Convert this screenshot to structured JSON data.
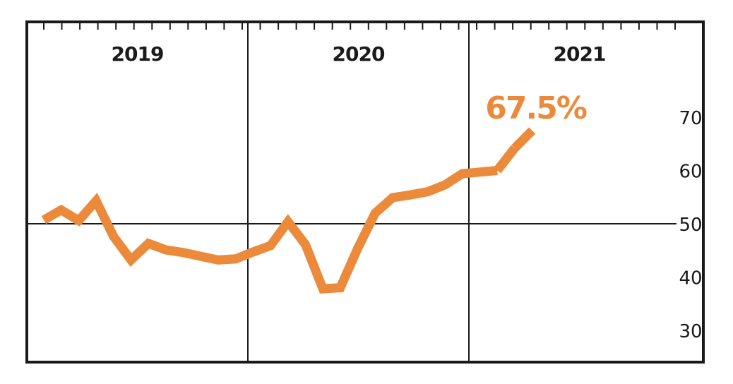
{
  "chart_data": {
    "type": "line",
    "periods": [
      "2019",
      "2020",
      "2021"
    ],
    "months_per_period": 12,
    "ylim": [
      27,
      78
    ],
    "yticks": [
      30,
      40,
      50,
      60,
      70
    ],
    "reference_line": 50,
    "grid": false,
    "series": [
      {
        "color": "#ec8a3b",
        "x": [
          "2019-01",
          "2019-02",
          "2019-03",
          "2019-04",
          "2019-05",
          "2019-06",
          "2019-07",
          "2019-08",
          "2019-09",
          "2019-10",
          "2019-11",
          "2019-12",
          "2020-01",
          "2020-02",
          "2020-03",
          "2020-04",
          "2020-05",
          "2020-06",
          "2020-07",
          "2020-08",
          "2020-09",
          "2020-10",
          "2020-11",
          "2020-12",
          "2021-01",
          "2021-02",
          "2021-03"
        ],
        "values": [
          50.7,
          52.6,
          50.6,
          54.3,
          47.6,
          43.2,
          46.3,
          45.1,
          44.6,
          43.9,
          43.2,
          43.4,
          44.7,
          45.9,
          50.4,
          46.1,
          37.8,
          38.0,
          45.4,
          52.0,
          54.9,
          55.4,
          56.0,
          57.3,
          59.4,
          59.7,
          60.0
        ]
      },
      {
        "color": "#ec8a3b",
        "x": [
          "2021-03",
          "2021-04"
        ],
        "values": [
          60.0,
          64.2
        ]
      },
      {
        "color": "#ec8a3b",
        "x": [
          "2021-04",
          "2021-05"
        ],
        "values": [
          64.2,
          67.5
        ]
      }
    ],
    "last_value_label": "67.5%",
    "accent_color": "#ec8a3b",
    "ink_color": "#1a1a1a"
  }
}
